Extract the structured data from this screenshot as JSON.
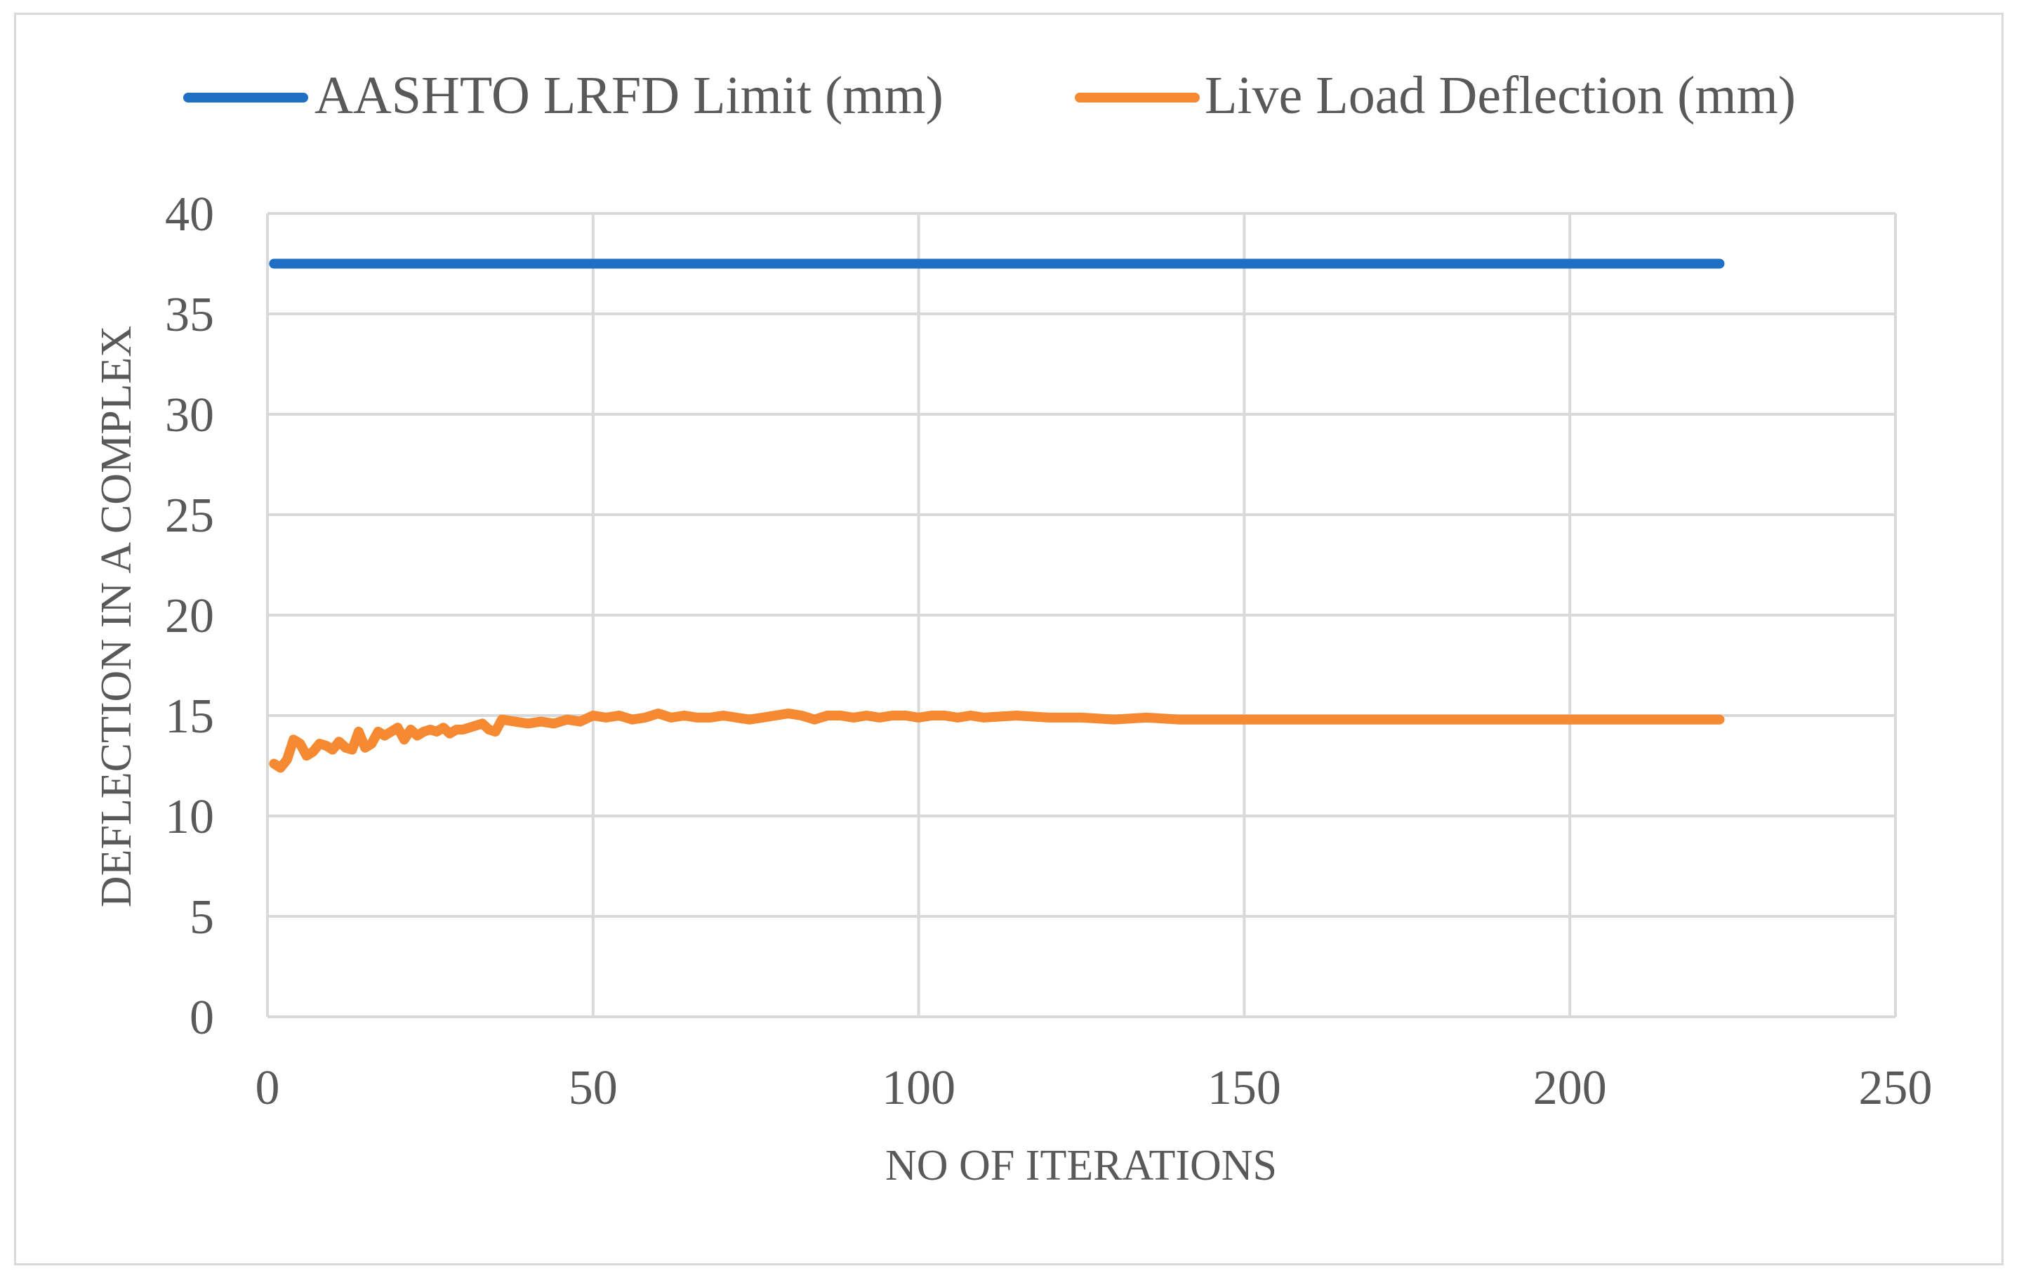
{
  "chart_data": {
    "type": "line",
    "title": "",
    "xlabel": "NO OF ITERATIONS",
    "ylabel": "DEFLECTION IN A COMPLEX",
    "xlim": [
      0,
      250
    ],
    "ylim": [
      0,
      40
    ],
    "x_ticks": [
      "0",
      "50",
      "100",
      "150",
      "200",
      "250"
    ],
    "y_ticks": [
      "0",
      "5",
      "10",
      "15",
      "20",
      "25",
      "30",
      "35",
      "40"
    ],
    "grid": true,
    "legend_position": "top",
    "series": [
      {
        "name": "AASHTO LRFD Limit (mm)",
        "color": "#1f6fc5",
        "x": [
          1,
          223
        ],
        "y": [
          37.5,
          37.5
        ]
      },
      {
        "name": "Live Load Deflection (mm)",
        "color": "#f58a33",
        "x": [
          1,
          2,
          3,
          4,
          5,
          6,
          7,
          8,
          9,
          10,
          11,
          12,
          13,
          14,
          15,
          16,
          17,
          18,
          19,
          20,
          21,
          22,
          23,
          24,
          25,
          26,
          27,
          28,
          29,
          30,
          31,
          32,
          33,
          34,
          35,
          36,
          38,
          40,
          42,
          44,
          46,
          48,
          50,
          52,
          54,
          56,
          58,
          60,
          62,
          64,
          66,
          68,
          70,
          72,
          74,
          76,
          78,
          80,
          82,
          84,
          86,
          88,
          90,
          92,
          94,
          96,
          98,
          100,
          102,
          104,
          106,
          108,
          110,
          115,
          120,
          125,
          130,
          135,
          140,
          145,
          150,
          155,
          160,
          180,
          200,
          223
        ],
        "y": [
          12.6,
          12.4,
          12.8,
          13.8,
          13.6,
          13.0,
          13.2,
          13.6,
          13.5,
          13.3,
          13.7,
          13.4,
          13.3,
          14.2,
          13.4,
          13.6,
          14.2,
          14.0,
          14.2,
          14.4,
          13.8,
          14.3,
          14.0,
          14.2,
          14.3,
          14.2,
          14.4,
          14.1,
          14.3,
          14.3,
          14.4,
          14.5,
          14.6,
          14.3,
          14.2,
          14.8,
          14.7,
          14.6,
          14.7,
          14.6,
          14.8,
          14.7,
          15.0,
          14.9,
          15.0,
          14.8,
          14.9,
          15.1,
          14.9,
          15.0,
          14.9,
          14.9,
          15.0,
          14.9,
          14.8,
          14.9,
          15.0,
          15.1,
          15.0,
          14.8,
          15.0,
          15.0,
          14.9,
          15.0,
          14.9,
          15.0,
          15.0,
          14.9,
          15.0,
          15.0,
          14.9,
          15.0,
          14.9,
          15.0,
          14.9,
          14.9,
          14.8,
          14.9,
          14.8,
          14.8,
          14.8,
          14.8,
          14.8,
          14.8,
          14.8,
          14.8
        ]
      }
    ]
  }
}
